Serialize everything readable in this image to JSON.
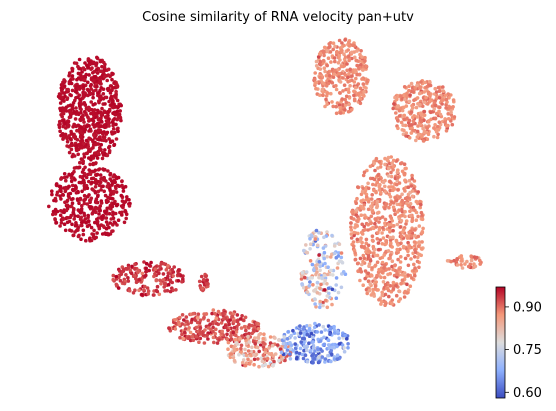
{
  "chart_data": {
    "type": "scatter",
    "title": "Cosine similarity of RNA velocity pan+utv",
    "xlabel": "",
    "ylabel": "",
    "grid": false,
    "axes_visible": false,
    "colormap": "coolwarm",
    "colorbar": {
      "vmin": 0.58,
      "vmax": 0.97,
      "ticks": [
        0.6,
        0.75,
        0.9
      ],
      "tick_labels": [
        "0.60",
        "0.75",
        "0.90"
      ],
      "placement": "right"
    },
    "clusters": [
      {
        "region": "left-upper-lobe",
        "cx": 0.13,
        "cy": 0.8,
        "rx": 0.07,
        "ry": 0.16,
        "n": 650,
        "value": 0.965,
        "spread": 0.004
      },
      {
        "region": "left-lower-lobe",
        "cx": 0.13,
        "cy": 0.53,
        "rx": 0.09,
        "ry": 0.11,
        "n": 420,
        "value": 0.965,
        "spread": 0.004
      },
      {
        "region": "tail-upper",
        "cx": 0.26,
        "cy": 0.31,
        "rx": 0.08,
        "ry": 0.05,
        "n": 180,
        "value": 0.94,
        "spread": 0.02
      },
      {
        "region": "tail-lower",
        "cx": 0.4,
        "cy": 0.17,
        "rx": 0.1,
        "ry": 0.05,
        "n": 260,
        "value": 0.92,
        "spread": 0.02
      },
      {
        "region": "bottom-bridge",
        "cx": 0.5,
        "cy": 0.1,
        "rx": 0.07,
        "ry": 0.05,
        "n": 180,
        "value": 0.86,
        "spread": 0.05
      },
      {
        "region": "bottom-blue-pocket",
        "cx": 0.62,
        "cy": 0.12,
        "rx": 0.08,
        "ry": 0.06,
        "n": 230,
        "value": 0.66,
        "spread": 0.06
      },
      {
        "region": "central-stem",
        "cx": 0.64,
        "cy": 0.34,
        "rx": 0.05,
        "ry": 0.12,
        "n": 180,
        "value": 0.77,
        "spread": 0.07
      },
      {
        "region": "right-body",
        "cx": 0.78,
        "cy": 0.45,
        "rx": 0.08,
        "ry": 0.22,
        "n": 700,
        "value": 0.88,
        "spread": 0.015
      },
      {
        "region": "right-upper-arm",
        "cx": 0.68,
        "cy": 0.9,
        "rx": 0.06,
        "ry": 0.11,
        "n": 330,
        "value": 0.88,
        "spread": 0.015
      },
      {
        "region": "far-right-arm",
        "cx": 0.86,
        "cy": 0.8,
        "rx": 0.07,
        "ry": 0.09,
        "n": 320,
        "value": 0.88,
        "spread": 0.015
      },
      {
        "region": "right-tail",
        "cx": 0.95,
        "cy": 0.36,
        "rx": 0.04,
        "ry": 0.02,
        "n": 40,
        "value": 0.88,
        "spread": 0.015
      },
      {
        "region": "small-cluster",
        "cx": 0.38,
        "cy": 0.3,
        "rx": 0.01,
        "ry": 0.03,
        "n": 25,
        "value": 0.93,
        "spread": 0.015
      }
    ]
  }
}
